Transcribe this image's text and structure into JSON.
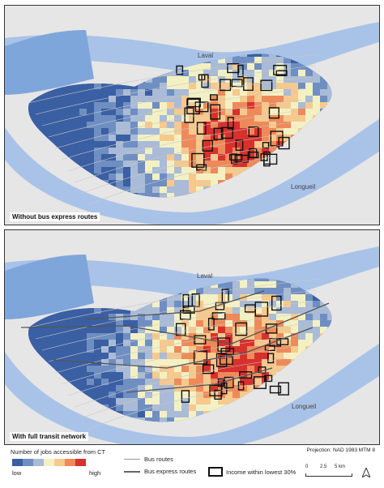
{
  "colors": {
    "water": "#a9c3e8",
    "water_dark": "#7fa6da",
    "land": "#e6e6e6",
    "low": "#3b5fa3",
    "ramp": [
      "#3b5fa3",
      "#6f8fc2",
      "#a9bbd6",
      "#f3f1c4",
      "#f6c98e",
      "#ee8a5a",
      "#d7312d"
    ]
  },
  "panels": [
    {
      "caption": "Without bus express routes",
      "express_routes": false
    },
    {
      "caption": "With full transit network",
      "express_routes": true
    }
  ],
  "places": {
    "laval": "Laval",
    "longueuil": "Longueil"
  },
  "legend": {
    "title": "Number of jobs accessible from CT",
    "low": "low",
    "high": "high",
    "bus_routes": "Bus routes",
    "bus_express_routes": "Bus express routes",
    "income": "Income within lowest 30%"
  },
  "projection": "Projection: NAD 1983 MTM 8",
  "scale": {
    "ticks": [
      "0",
      "2.5",
      "5 km"
    ]
  },
  "icons": {
    "north": "north-arrow-icon"
  }
}
